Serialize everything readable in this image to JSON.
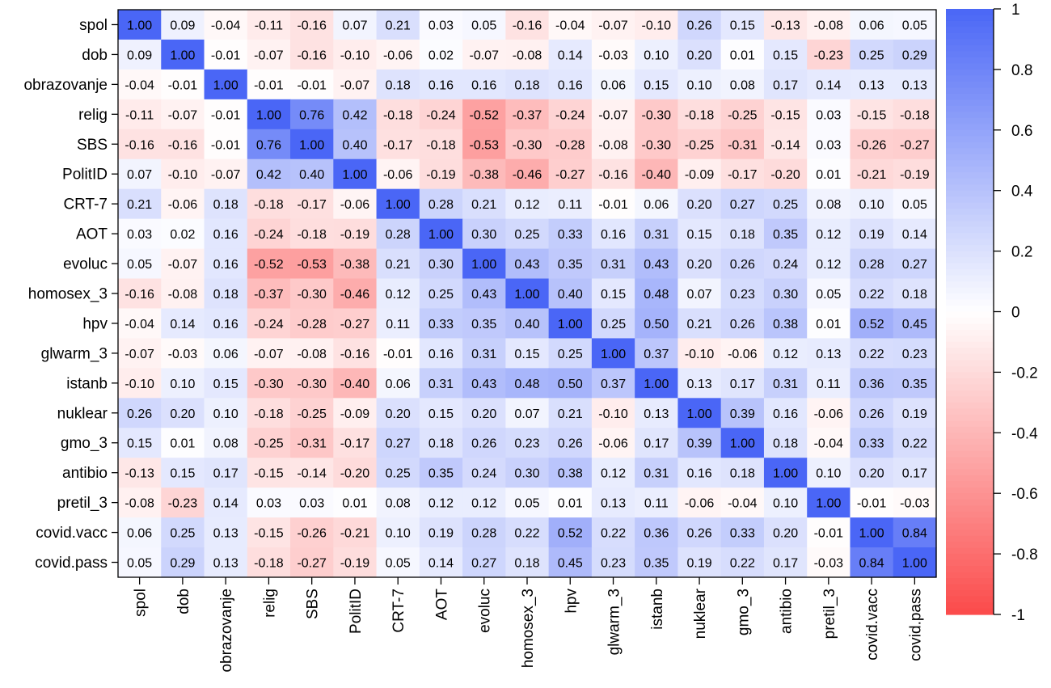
{
  "chart_data": {
    "type": "heatmap",
    "title": "",
    "xlabel": "",
    "ylabel": "",
    "variables": [
      "spol",
      "dob",
      "obrazovanje",
      "relig",
      "SBS",
      "PolitID",
      "CRT-7",
      "AOT",
      "evoluc",
      "homosex_3",
      "hpv",
      "glwarm_3",
      "istanb",
      "nuklear",
      "gmo_3",
      "antibio",
      "pretil_3",
      "covid.vacc",
      "covid.pass"
    ],
    "matrix": [
      [
        1.0,
        0.09,
        -0.04,
        -0.11,
        -0.16,
        0.07,
        0.21,
        0.03,
        0.05,
        -0.16,
        -0.04,
        -0.07,
        -0.1,
        0.26,
        0.15,
        -0.13,
        -0.08,
        0.06,
        0.05
      ],
      [
        0.09,
        1.0,
        -0.01,
        -0.07,
        -0.16,
        -0.1,
        -0.06,
        0.02,
        -0.07,
        -0.08,
        0.14,
        -0.03,
        0.1,
        0.2,
        0.01,
        0.15,
        -0.23,
        0.25,
        0.29
      ],
      [
        -0.04,
        -0.01,
        1.0,
        -0.01,
        -0.01,
        -0.07,
        0.18,
        0.16,
        0.16,
        0.18,
        0.16,
        0.06,
        0.15,
        0.1,
        0.08,
        0.17,
        0.14,
        0.13,
        0.13
      ],
      [
        -0.11,
        -0.07,
        -0.01,
        1.0,
        0.76,
        0.42,
        -0.18,
        -0.24,
        -0.52,
        -0.37,
        -0.24,
        -0.07,
        -0.3,
        -0.18,
        -0.25,
        -0.15,
        0.03,
        -0.15,
        -0.18
      ],
      [
        -0.16,
        -0.16,
        -0.01,
        0.76,
        1.0,
        0.4,
        -0.17,
        -0.18,
        -0.53,
        -0.3,
        -0.28,
        -0.08,
        -0.3,
        -0.25,
        -0.31,
        -0.14,
        0.03,
        -0.26,
        -0.27
      ],
      [
        0.07,
        -0.1,
        -0.07,
        0.42,
        0.4,
        1.0,
        -0.06,
        -0.19,
        -0.38,
        -0.46,
        -0.27,
        -0.16,
        -0.4,
        -0.09,
        -0.17,
        -0.2,
        0.01,
        -0.21,
        -0.19
      ],
      [
        0.21,
        -0.06,
        0.18,
        -0.18,
        -0.17,
        -0.06,
        1.0,
        0.28,
        0.21,
        0.12,
        0.11,
        -0.01,
        0.06,
        0.2,
        0.27,
        0.25,
        0.08,
        0.1,
        0.05
      ],
      [
        0.03,
        0.02,
        0.16,
        -0.24,
        -0.18,
        -0.19,
        0.28,
        1.0,
        0.3,
        0.25,
        0.33,
        0.16,
        0.31,
        0.15,
        0.18,
        0.35,
        0.12,
        0.19,
        0.14
      ],
      [
        0.05,
        -0.07,
        0.16,
        -0.52,
        -0.53,
        -0.38,
        0.21,
        0.3,
        1.0,
        0.43,
        0.35,
        0.31,
        0.43,
        0.2,
        0.26,
        0.24,
        0.12,
        0.28,
        0.27
      ],
      [
        -0.16,
        -0.08,
        0.18,
        -0.37,
        -0.3,
        -0.46,
        0.12,
        0.25,
        0.43,
        1.0,
        0.4,
        0.15,
        0.48,
        0.07,
        0.23,
        0.3,
        0.05,
        0.22,
        0.18
      ],
      [
        -0.04,
        0.14,
        0.16,
        -0.24,
        -0.28,
        -0.27,
        0.11,
        0.33,
        0.35,
        0.4,
        1.0,
        0.25,
        0.5,
        0.21,
        0.26,
        0.38,
        0.01,
        0.52,
        0.45
      ],
      [
        -0.07,
        -0.03,
        0.06,
        -0.07,
        -0.08,
        -0.16,
        -0.01,
        0.16,
        0.31,
        0.15,
        0.25,
        1.0,
        0.37,
        -0.1,
        -0.06,
        0.12,
        0.13,
        0.22,
        0.23
      ],
      [
        -0.1,
        0.1,
        0.15,
        -0.3,
        -0.3,
        -0.4,
        0.06,
        0.31,
        0.43,
        0.48,
        0.5,
        0.37,
        1.0,
        0.13,
        0.17,
        0.31,
        0.11,
        0.36,
        0.35
      ],
      [
        0.26,
        0.2,
        0.1,
        -0.18,
        -0.25,
        -0.09,
        0.2,
        0.15,
        0.2,
        0.07,
        0.21,
        -0.1,
        0.13,
        1.0,
        0.39,
        0.16,
        -0.06,
        0.26,
        0.19
      ],
      [
        0.15,
        0.01,
        0.08,
        -0.25,
        -0.31,
        -0.17,
        0.27,
        0.18,
        0.26,
        0.23,
        0.26,
        -0.06,
        0.17,
        0.39,
        1.0,
        0.18,
        -0.04,
        0.33,
        0.22
      ],
      [
        -0.13,
        0.15,
        0.17,
        -0.15,
        -0.14,
        -0.2,
        0.25,
        0.35,
        0.24,
        0.3,
        0.38,
        0.12,
        0.31,
        0.16,
        0.18,
        1.0,
        0.1,
        0.2,
        0.17
      ],
      [
        -0.08,
        -0.23,
        0.14,
        0.03,
        0.03,
        0.01,
        0.08,
        0.12,
        0.12,
        0.05,
        0.01,
        0.13,
        0.11,
        -0.06,
        -0.04,
        0.1,
        1.0,
        -0.01,
        -0.03
      ],
      [
        0.06,
        0.25,
        0.13,
        -0.15,
        -0.26,
        -0.21,
        0.1,
        0.19,
        0.28,
        0.22,
        0.52,
        0.22,
        0.36,
        0.26,
        0.33,
        0.2,
        -0.01,
        1.0,
        0.84
      ],
      [
        0.05,
        0.29,
        0.13,
        -0.18,
        -0.27,
        -0.19,
        0.05,
        0.14,
        0.27,
        0.18,
        0.45,
        0.23,
        0.35,
        0.19,
        0.22,
        0.17,
        -0.03,
        0.84,
        1.0
      ]
    ],
    "value_range": [
      -1,
      1
    ],
    "colorbar": {
      "ticks": [
        1,
        0.8,
        0.6,
        0.4,
        0.2,
        0,
        -0.2,
        -0.4,
        -0.6,
        -0.8,
        -1
      ],
      "tick_labels": [
        "1",
        "0.8",
        "0.6",
        "0.4",
        "0.2",
        "0",
        "-0.2",
        "-0.4",
        "-0.6",
        "-0.8",
        "-1"
      ],
      "positive_color": "#4a66f6",
      "neutral_color": "#ffffff",
      "negative_color": "#fb4a4a"
    },
    "value_format": "2 decimals",
    "grid": false,
    "legend_position": "right"
  }
}
